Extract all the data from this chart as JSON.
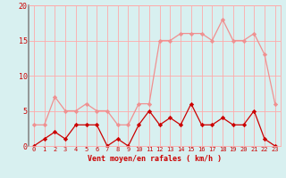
{
  "hours": [
    0,
    1,
    2,
    3,
    4,
    5,
    6,
    7,
    8,
    9,
    10,
    11,
    12,
    13,
    14,
    15,
    16,
    17,
    18,
    19,
    20,
    21,
    22,
    23
  ],
  "vent_moyen": [
    0,
    1,
    2,
    1,
    3,
    3,
    3,
    0,
    1,
    0,
    3,
    5,
    3,
    4,
    3,
    6,
    3,
    3,
    4,
    3,
    3,
    5,
    1,
    0
  ],
  "rafales": [
    3,
    3,
    7,
    5,
    5,
    6,
    5,
    5,
    3,
    3,
    6,
    6,
    15,
    15,
    16,
    16,
    16,
    15,
    18,
    15,
    15,
    16,
    13,
    6
  ],
  "color_moyen": "#cc0000",
  "color_rafales": "#f09090",
  "bg_color": "#d8f0f0",
  "grid_color": "#ffaaaa",
  "ylim": [
    0,
    20
  ],
  "yticks": [
    0,
    5,
    10,
    15,
    20
  ],
  "xlabel": "Vent moyen/en rafales ( km/h )",
  "xlabel_color": "#cc0000",
  "tick_color": "#cc0000",
  "marker": "D",
  "markersize": 2.2,
  "linewidth": 0.9
}
